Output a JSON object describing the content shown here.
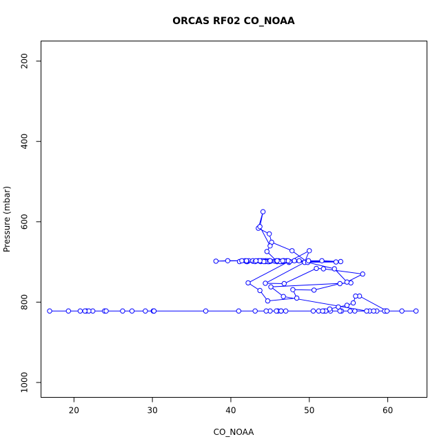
{
  "chart_data": {
    "type": "line",
    "title": "ORCAS RF02 CO_NOAA",
    "xlabel": "CO_NOAA",
    "ylabel": "Pressure (mbar)",
    "xlim": [
      15.8,
      65.0
    ],
    "ylim": [
      1037,
      150
    ],
    "y_reversed": true,
    "grid": false,
    "x_ticks": [
      20,
      30,
      40,
      50,
      60
    ],
    "y_ticks": [
      200,
      400,
      600,
      800,
      1000
    ],
    "series": [
      {
        "color": "#0000ff",
        "marker": "open-circle",
        "x": [
          54.1,
          41.0,
          45.0,
          52.7,
          46.0,
          30.1,
          20.8,
          46.4,
          30.2,
          19.3,
          55.2,
          44.5,
          45.8,
          16.9,
          22.4,
          30.2,
          47.0,
          21.6,
          26.2,
          23.9,
          27.4,
          24.1,
          21.9,
          58.6,
          21.4,
          36.8,
          46.4,
          29.1,
          63.6,
          61.8,
          51.9,
          43.1,
          59.8,
          57.7,
          59.6,
          58.2,
          55.8,
          53.9,
          51.2,
          50.5,
          59.9,
          56.4,
          55.9,
          55.6,
          54.8,
          53.7,
          52.6,
          52.1,
          51.7,
          57.3,
          46.7,
          45.1,
          55.3,
          53.9,
          50.6,
          47.9,
          48.4,
          44.7,
          43.7,
          42.2,
          50.0,
          49.4,
          44.4,
          46.8,
          50.9,
          51.8,
          56.8,
          54.8,
          53.2,
          49.8,
          47.8,
          45.2,
          44.9,
          43.5,
          44.1,
          43.7,
          45.0,
          44.6,
          45.9,
          47.1,
          53.4,
          47.4,
          45.6,
          42.9,
          41.8,
          42.8,
          44.9,
          42.3,
          43.8,
          46.1,
          44.9,
          46.3,
          43.9,
          45.1,
          45.8,
          49.9,
          48.7,
          44.1,
          42.1,
          45.9,
          44.8,
          46.4,
          46.6,
          42.0,
          54.0,
          51.6,
          41.1,
          42.8,
          39.6,
          38.1,
          42.0,
          44.4,
          43.1,
          46.3,
          47.5,
          44.6,
          44.7,
          46.7,
          44.4,
          41.4,
          44.2,
          43.5,
          47.3,
          48.1,
          46.8,
          45.0,
          43.7,
          45.9,
          43.2,
          46.6
        ],
        "y": [
          822,
          822,
          822,
          822,
          822,
          822,
          822,
          822,
          822,
          822,
          822,
          822,
          822,
          822,
          822,
          822,
          822,
          822,
          822,
          822,
          822,
          822,
          822,
          822,
          822,
          822,
          822,
          822,
          822,
          822,
          822,
          822,
          822,
          822,
          822,
          822,
          822,
          822,
          822,
          822,
          822,
          785,
          785,
          802,
          808,
          812,
          817,
          822,
          822,
          822,
          786,
          762,
          752,
          754,
          770,
          769,
          790,
          797,
          771,
          752,
          672,
          701,
          753,
          754,
          716,
          717,
          730,
          750,
          717,
          701,
          672,
          651,
          630,
          616,
          575,
          612,
          660,
          674,
          699,
          697,
          700,
          701,
          698,
          698,
          697,
          698,
          699,
          697,
          699,
          697,
          697,
          699,
          697,
          698,
          697,
          697,
          697,
          697,
          699,
          699,
          699,
          699,
          699,
          699,
          699,
          697,
          699,
          697,
          697,
          698,
          697,
          697,
          699,
          699,
          699,
          697,
          699,
          697,
          699,
          697,
          699,
          697,
          697,
          697,
          697,
          697,
          697,
          697,
          697,
          697
        ]
      }
    ]
  }
}
